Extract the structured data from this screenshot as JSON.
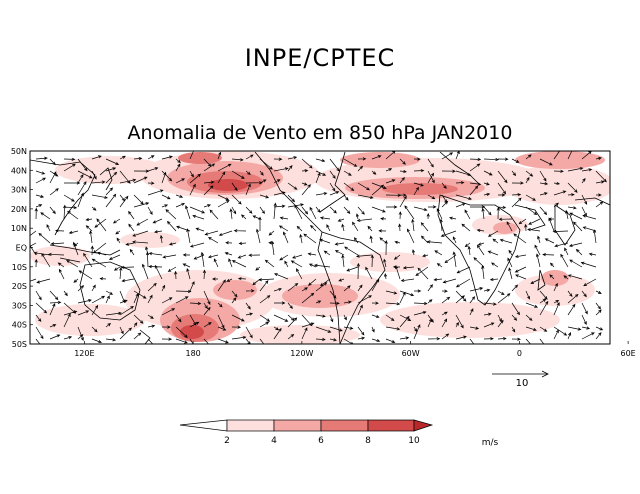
{
  "header": {
    "organization": "INPE/CPTEC",
    "subtitle": "Anomalia de Vento em 850 hPa JAN2010"
  },
  "map": {
    "lat_labels": [
      "50N",
      "40N",
      "30N",
      "20N",
      "10N",
      "EQ",
      "10S",
      "20S",
      "30S",
      "40S",
      "50S"
    ],
    "lon_labels": [
      "120E",
      "180",
      "120W",
      "60W",
      "0",
      "60E"
    ],
    "region": "Global tropical band 50S-50N"
  },
  "reference_vector": {
    "label": "10",
    "units_value": 10
  },
  "legend": {
    "levels": [
      "2",
      "4",
      "6",
      "8",
      "10"
    ],
    "units": "m/s",
    "colors": [
      "#ffffff",
      "#fde0dd",
      "#f4a9a6",
      "#e57a77",
      "#d24a4a",
      "#b8282b"
    ]
  },
  "chart_data": {
    "type": "heatmap",
    "title": "Anomalia de Vento em 850 hPa JAN2010",
    "variable": "850 hPa wind anomaly magnitude",
    "units": "m/s",
    "lat_range": [
      -50,
      50
    ],
    "lon_range": [
      90,
      410
    ],
    "contour_levels": [
      2,
      4,
      6,
      8,
      10
    ],
    "reference_vector_ms": 10
  }
}
